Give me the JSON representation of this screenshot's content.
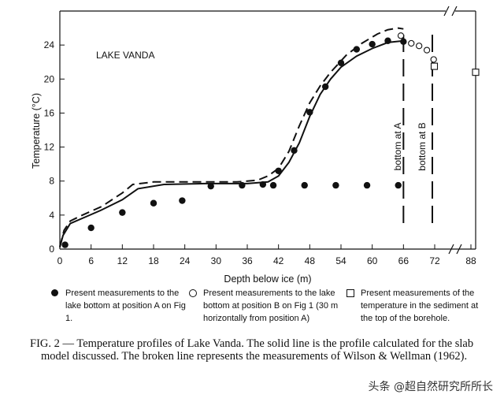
{
  "chart_data": {
    "type": "line",
    "title": "LAKE VANDA",
    "xlabel": "Depth below ice (m)",
    "ylabel": "Temperature (°C)",
    "xlim": [
      0,
      90
    ],
    "ylim": [
      0,
      28
    ],
    "x_ticks": [
      "0",
      "6",
      "12",
      "18",
      "24",
      "30",
      "36",
      "42",
      "48",
      "54",
      "60",
      "66",
      "72",
      "88"
    ],
    "y_ticks": [
      "0",
      "4",
      "8",
      "12",
      "16",
      "20",
      "24"
    ],
    "axis_break": "between 72 and 88 on the depth axis",
    "series": [
      {
        "name": "Present measurements to the lake bottom at position A on Fig 1.",
        "marker": "filled-circle",
        "x": [
          1,
          6,
          12.5,
          18,
          24,
          30,
          36,
          42,
          48,
          54,
          60,
          66
        ],
        "y": [
          0.5,
          2.5,
          4.3,
          5.5,
          5.8,
          7.5,
          7.5,
          7.5,
          7.5,
          7.5,
          7.6,
          7.7
        ],
        "points": [
          [
            1,
            0.5
          ],
          [
            6,
            2.5
          ],
          [
            12,
            4.3
          ],
          [
            18,
            5.4
          ],
          [
            23.5,
            5.7
          ],
          [
            29,
            7.4
          ],
          [
            35,
            7.5
          ],
          [
            41,
            7.5
          ],
          [
            47,
            7.5
          ],
          [
            53,
            7.5
          ],
          [
            59,
            7.5
          ],
          [
            65,
            7.5
          ]
        ]
      },
      {
        "name": "Present measurements to the lake bottom at position B on Fig 1 (30 m horizontally from position A)",
        "marker": "open-circle",
        "points": [
          [
            65.5,
            25.1
          ],
          [
            67.5,
            24.2
          ],
          [
            69,
            23.9
          ],
          [
            70.5,
            23.4
          ],
          [
            71.8,
            22.3
          ]
        ]
      },
      {
        "name": "Present measurements of the temperature in the sediment at the top of the borehole.",
        "marker": "open-square",
        "points": [
          [
            72.5,
            21.5
          ],
          [
            90,
            20.8
          ]
        ]
      },
      {
        "name": "Profile calculated for the slab model",
        "style": "solid",
        "points": [
          [
            0,
            0.2
          ],
          [
            0.6,
            1.6
          ],
          [
            2,
            3.0
          ],
          [
            5,
            3.8
          ],
          [
            8,
            4.6
          ],
          [
            12,
            5.8
          ],
          [
            15,
            7.1
          ],
          [
            20,
            7.6
          ],
          [
            28,
            7.7
          ],
          [
            36,
            7.7
          ],
          [
            40,
            7.9
          ],
          [
            42,
            8.6
          ],
          [
            44,
            10.2
          ],
          [
            46,
            12.5
          ],
          [
            48,
            15.6
          ],
          [
            50,
            18.2
          ],
          [
            52,
            20.0
          ],
          [
            54,
            21.4
          ],
          [
            57,
            22.7
          ],
          [
            60,
            23.6
          ],
          [
            63,
            24.3
          ],
          [
            66,
            24.5
          ]
        ]
      },
      {
        "name": "Measurements of Wilson & Wellman (1962)",
        "style": "dashed",
        "points": [
          [
            0,
            0.3
          ],
          [
            0.8,
            2.2
          ],
          [
            2,
            3.3
          ],
          [
            4,
            3.9
          ],
          [
            8,
            5.0
          ],
          [
            12,
            6.6
          ],
          [
            14,
            7.6
          ],
          [
            18,
            7.9
          ],
          [
            26,
            7.9
          ],
          [
            34,
            7.9
          ],
          [
            38,
            8.1
          ],
          [
            40,
            8.6
          ],
          [
            42,
            9.5
          ],
          [
            44,
            11.5
          ],
          [
            46,
            14.5
          ],
          [
            48,
            17.2
          ],
          [
            50,
            19.2
          ],
          [
            52,
            20.8
          ],
          [
            55,
            22.8
          ],
          [
            58,
            24.2
          ],
          [
            61,
            25.3
          ],
          [
            63,
            25.8
          ],
          [
            65,
            26.0
          ],
          [
            66,
            25.9
          ]
        ]
      }
    ],
    "annotations": [
      "bottom at A",
      "bottom at B"
    ],
    "grid": false
  },
  "legend": {
    "item_a": "Present measurements to the lake bottom at position A on Fig 1.",
    "item_b": "Present measurements to the lake bottom at position B on Fig 1 (30 m horizontally from position A)",
    "item_c": "Present measurements of the temperature in the sediment at the top of the borehole."
  },
  "caption": {
    "label": "FIG. 2",
    "text": " — Temperature profiles of Lake Vanda. The solid line is the profile calculated for the slab model discussed. The broken line represents the measurements of Wilson & Wellman (1962)."
  },
  "watermark": "头条 @超自然研究所所长"
}
